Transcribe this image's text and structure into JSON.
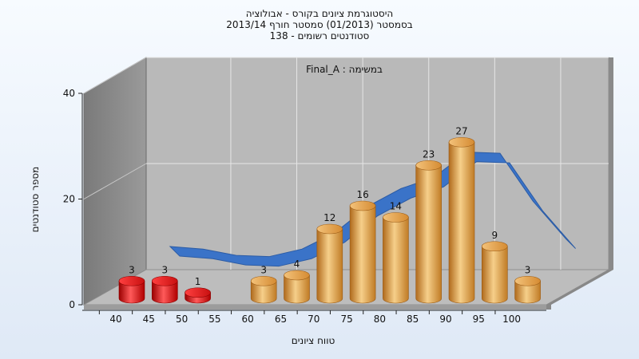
{
  "chart_data": {
    "type": "bar",
    "title_lines": [
      "היסטוגרמת ציונים בקורס - אבולוציה",
      "בסמסטר  (01/2013)  סמסטר חורף 2013/14",
      "סטודנטים רשומים - 138"
    ],
    "annotation": "Final_A : במשימה",
    "xlabel": "טווח ציונים",
    "ylabel": "מספר סטודנטים",
    "categories": [
      "40",
      "45",
      "50",
      "55",
      "60",
      "65",
      "70",
      "75",
      "80",
      "85",
      "90",
      "95",
      "100"
    ],
    "values": [
      3,
      3,
      1,
      null,
      3,
      4,
      12,
      16,
      14,
      23,
      27,
      9,
      3
    ],
    "yticks": [
      0,
      20,
      40
    ],
    "ylim": [
      0,
      40
    ],
    "fail_color": "#e01818",
    "pass_color": "#e8a246",
    "curve_color": "#3a73c8",
    "curve_shadow_color": "#707070",
    "grid": true,
    "legend": "none"
  }
}
